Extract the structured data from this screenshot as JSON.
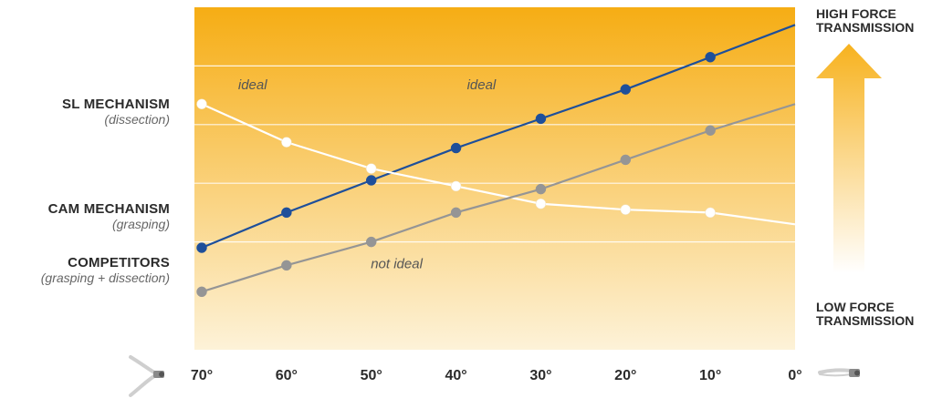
{
  "chart_data": {
    "type": "line",
    "title": "",
    "xlabel": "",
    "ylabel": "",
    "categories": [
      "70°",
      "60°",
      "50°",
      "40°",
      "30°",
      "20°",
      "10°",
      "0°"
    ],
    "x": [
      70,
      60,
      50,
      40,
      30,
      20,
      10,
      0
    ],
    "ylim": [
      0,
      100
    ],
    "grid": true,
    "series": [
      {
        "name": "SL MECHANISM",
        "sub": "(dissection)",
        "color": "#1e4f9a",
        "values": [
          18,
          30,
          41,
          52,
          62,
          72,
          83,
          94
        ],
        "markers": [
          true,
          true,
          true,
          true,
          true,
          true,
          true,
          false
        ]
      },
      {
        "name": "CAM MECHANISM",
        "sub": "(grasping)",
        "color": "#ffffff",
        "values": [
          67,
          54,
          45,
          39,
          33,
          31,
          30,
          26
        ],
        "markers": [
          true,
          true,
          true,
          true,
          true,
          true,
          true,
          false
        ]
      },
      {
        "name": "COMPETITORS",
        "sub": "(grasping + dissection)",
        "color": "#959595",
        "values": [
          3,
          12,
          20,
          30,
          38,
          48,
          58,
          67
        ],
        "markers": [
          true,
          true,
          true,
          true,
          true,
          true,
          true,
          false
        ]
      }
    ],
    "annotations": [
      {
        "text": "ideal",
        "x": 64,
        "y": 72,
        "color": "#555555"
      },
      {
        "text": "ideal",
        "x": 37,
        "y": 72,
        "color": "#555555"
      },
      {
        "text": "not ideal",
        "x": 47,
        "y": 11,
        "color": "#555555"
      }
    ],
    "arrow": {
      "top_label_line1": "HIGH FORCE",
      "top_label_line2": "TRANSMISSION",
      "bottom_label_line1": "LOW FORCE",
      "bottom_label_line2": "TRANSMISSION",
      "color": "#f7b21e"
    },
    "background_gradient": {
      "top": "#f6ad14",
      "bottom": "#fdf2d8"
    },
    "x_icons": {
      "left": "open-jaw-instrument-icon",
      "right": "closed-jaw-instrument-icon"
    }
  }
}
